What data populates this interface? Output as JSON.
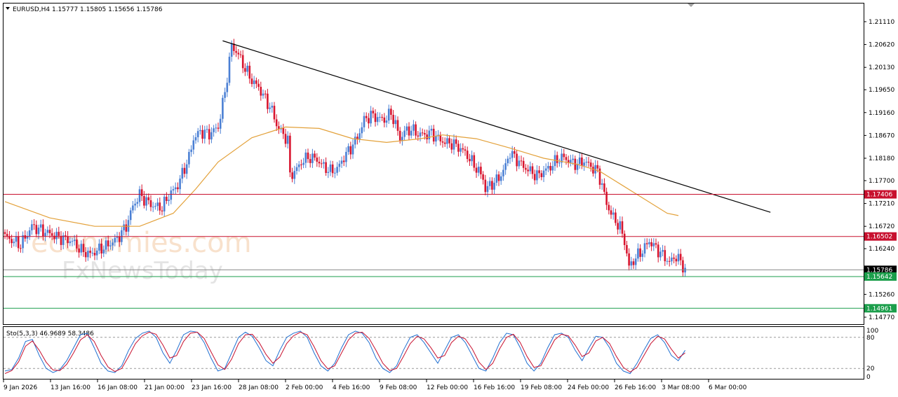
{
  "header": {
    "symbol_text": "EURUSD,H4  1.15777 1.15805 1.15656 1.15786"
  },
  "watermark": {
    "brand": "economies.com",
    "sub": "FxNewsToday"
  },
  "colors": {
    "bull": "#4a7fd4",
    "bear": "#d8152f",
    "ma": "#e3a13a",
    "trend": "#000000",
    "resistance": "#c8102e",
    "support": "#1b9e4b",
    "stoch_main": "#1f6fd1",
    "stoch_signal": "#c8102e",
    "grid_dash": "#9a9a9a"
  },
  "chart_data": [
    {
      "type": "candlestick",
      "title": "EURUSD,H4",
      "ohlc_header": [
        1.15777,
        1.15805,
        1.15656,
        1.15786
      ],
      "x_tick_labels": [
        "9 Jan 2026",
        "13 Jan 16:00",
        "16 Jan 08:00",
        "21 Jan 00:00",
        "23 Jan 16:00",
        "28 Jan 08:00",
        "2 Feb 00:00",
        "4 Feb 16:00",
        "9 Feb 08:00",
        "12 Feb 00:00",
        "16 Feb 16:00",
        "19 Feb 08:00",
        "24 Feb 00:00",
        "26 Feb 16:00",
        "3 Mar 08:00",
        "6 Mar 00:00"
      ],
      "y_ticks": [
        1.2111,
        1.2062,
        1.2013,
        1.1965,
        1.1916,
        1.1867,
        1.1818,
        1.177,
        1.1721,
        1.1672,
        1.1624,
        1.1575,
        1.1526,
        1.1477
      ],
      "ylim": [
        1.1462,
        1.215
      ],
      "path_points": [
        [
          0,
          1.165
        ],
        [
          7,
          1.1632
        ],
        [
          12,
          1.1672
        ],
        [
          18,
          1.166
        ],
        [
          24,
          1.1648
        ],
        [
          30,
          1.164
        ],
        [
          34,
          1.162
        ],
        [
          38,
          1.1612
        ],
        [
          42,
          1.1622
        ],
        [
          46,
          1.1632
        ],
        [
          50,
          1.1645
        ],
        [
          54,
          1.1672
        ],
        [
          57,
          1.1715
        ],
        [
          60,
          1.174
        ],
        [
          63,
          1.1726
        ],
        [
          66,
          1.1716
        ],
        [
          70,
          1.1712
        ],
        [
          73,
          1.1738
        ],
        [
          77,
          1.176
        ],
        [
          79,
          1.1785
        ],
        [
          82,
          1.182
        ],
        [
          84,
          1.186
        ],
        [
          87,
          1.1875
        ],
        [
          91,
          1.187
        ],
        [
          95,
          1.1885
        ],
        [
          98,
          1.196
        ],
        [
          101,
          1.206
        ],
        [
          104,
          1.204
        ],
        [
          107,
          1.201
        ],
        [
          110,
          1.1985
        ],
        [
          113,
          1.197
        ],
        [
          116,
          1.1945
        ],
        [
          119,
          1.192
        ],
        [
          121,
          1.189
        ],
        [
          124,
          1.1868
        ],
        [
          126,
          1.1858
        ],
        [
          127,
          1.178
        ],
        [
          130,
          1.1795
        ],
        [
          133,
          1.1815
        ],
        [
          136,
          1.182
        ],
        [
          139,
          1.1815
        ],
        [
          142,
          1.18
        ],
        [
          145,
          1.179
        ],
        [
          148,
          1.1795
        ],
        [
          151,
          1.182
        ],
        [
          154,
          1.184
        ],
        [
          157,
          1.1862
        ],
        [
          160,
          1.19
        ],
        [
          163,
          1.191
        ],
        [
          166,
          1.1905
        ],
        [
          169,
          1.19
        ],
        [
          172,
          1.1915
        ],
        [
          174,
          1.189
        ],
        [
          176,
          1.186
        ],
        [
          178,
          1.1875
        ],
        [
          181,
          1.188
        ],
        [
          184,
          1.187
        ],
        [
          187,
          1.1868
        ],
        [
          190,
          1.1872
        ],
        [
          193,
          1.186
        ],
        [
          196,
          1.1852
        ],
        [
          199,
          1.185
        ],
        [
          202,
          1.1842
        ],
        [
          205,
          1.183
        ],
        [
          208,
          1.181
        ],
        [
          211,
          1.179
        ],
        [
          213,
          1.1775
        ],
        [
          214,
          1.175
        ],
        [
          216,
          1.176
        ],
        [
          219,
          1.177
        ],
        [
          222,
          1.179
        ],
        [
          225,
          1.183
        ],
        [
          228,
          1.1815
        ],
        [
          231,
          1.18
        ],
        [
          234,
          1.179
        ],
        [
          237,
          1.178
        ],
        [
          240,
          1.179
        ],
        [
          243,
          1.18
        ],
        [
          246,
          1.1815
        ],
        [
          249,
          1.182
        ],
        [
          252,
          1.181
        ],
        [
          255,
          1.1805
        ],
        [
          258,
          1.1812
        ],
        [
          261,
          1.18
        ],
        [
          264,
          1.179
        ],
        [
          266,
          1.176
        ],
        [
          268,
          1.172
        ],
        [
          271,
          1.169
        ],
        [
          274,
          1.167
        ],
        [
          276,
          1.164
        ],
        [
          278,
          1.1585
        ],
        [
          281,
          1.1605
        ],
        [
          284,
          1.162
        ],
        [
          287,
          1.164
        ],
        [
          290,
          1.1625
        ],
        [
          293,
          1.161
        ],
        [
          296,
          1.1595
        ],
        [
          299,
          1.1608
        ],
        [
          301,
          1.1595
        ],
        [
          303,
          1.1578
        ]
      ],
      "moving_average": [
        [
          0,
          1.1725
        ],
        [
          20,
          1.169
        ],
        [
          40,
          1.1672
        ],
        [
          60,
          1.1672
        ],
        [
          75,
          1.17
        ],
        [
          85,
          1.1752
        ],
        [
          95,
          1.181
        ],
        [
          110,
          1.1862
        ],
        [
          125,
          1.1885
        ],
        [
          140,
          1.1882
        ],
        [
          155,
          1.186
        ],
        [
          170,
          1.1852
        ],
        [
          185,
          1.186
        ],
        [
          195,
          1.1868
        ],
        [
          210,
          1.186
        ],
        [
          225,
          1.184
        ],
        [
          240,
          1.1818
        ],
        [
          255,
          1.1805
        ],
        [
          265,
          1.179
        ],
        [
          280,
          1.1745
        ],
        [
          295,
          1.17
        ],
        [
          300,
          1.1695
        ]
      ],
      "trendline": [
        [
          97,
          1.207
        ],
        [
          341,
          1.1702
        ]
      ],
      "horizontal_levels": [
        {
          "value": 1.17406,
          "label": "1.17406",
          "kind": "resistance"
        },
        {
          "value": 1.16502,
          "label": "1.16502",
          "kind": "resistance"
        },
        {
          "value": 1.15786,
          "label": "1.15786",
          "kind": "current"
        },
        {
          "value": 1.15642,
          "label": "1.15642",
          "kind": "support"
        },
        {
          "value": 1.14961,
          "label": "1.14961",
          "kind": "support"
        }
      ]
    },
    {
      "type": "line",
      "title": "Sto(5,3,3) 46.9689 58.3486",
      "ylim": [
        0,
        100
      ],
      "y_ticks": [
        100,
        80,
        20,
        0
      ],
      "levels": [
        80,
        20
      ],
      "series": [
        {
          "values": [
            15,
            18,
            40,
            72,
            76,
            45,
            20,
            12,
            18,
            35,
            60,
            85,
            88,
            60,
            30,
            15,
            12,
            25,
            55,
            78,
            88,
            92,
            80,
            50,
            30,
            55,
            85,
            92,
            90,
            70,
            40,
            15,
            20,
            50,
            80,
            90,
            82,
            60,
            35,
            25,
            55,
            80,
            88,
            92,
            80,
            50,
            25,
            15,
            30,
            60,
            85,
            92,
            88,
            70,
            40,
            20,
            12,
            25,
            55,
            80,
            85,
            70,
            50,
            30,
            55,
            80,
            85,
            70,
            45,
            20,
            15,
            40,
            70,
            88,
            85,
            60,
            30,
            15,
            30,
            60,
            85,
            88,
            80,
            55,
            35,
            60,
            82,
            80,
            60,
            30,
            15,
            10,
            30,
            55,
            78,
            85,
            70,
            45,
            35,
            55
          ]
        },
        {
          "values": [
            10,
            16,
            33,
            63,
            73,
            55,
            32,
            17,
            16,
            28,
            50,
            75,
            85,
            72,
            45,
            23,
            14,
            20,
            43,
            68,
            83,
            90,
            86,
            65,
            40,
            45,
            72,
            88,
            90,
            78,
            52,
            27,
            18,
            38,
            68,
            85,
            86,
            70,
            47,
            30,
            42,
            68,
            83,
            90,
            85,
            62,
            35,
            19,
            25,
            50,
            75,
            88,
            90,
            78,
            55,
            30,
            16,
            20,
            43,
            68,
            82,
            77,
            60,
            40,
            45,
            70,
            82,
            77,
            58,
            32,
            18,
            30,
            58,
            80,
            86,
            70,
            43,
            22,
            25,
            50,
            75,
            86,
            83,
            65,
            43,
            50,
            73,
            80,
            68,
            43,
            22,
            13,
            22,
            45,
            68,
            82,
            77,
            57,
            40,
            50
          ]
        }
      ]
    }
  ]
}
